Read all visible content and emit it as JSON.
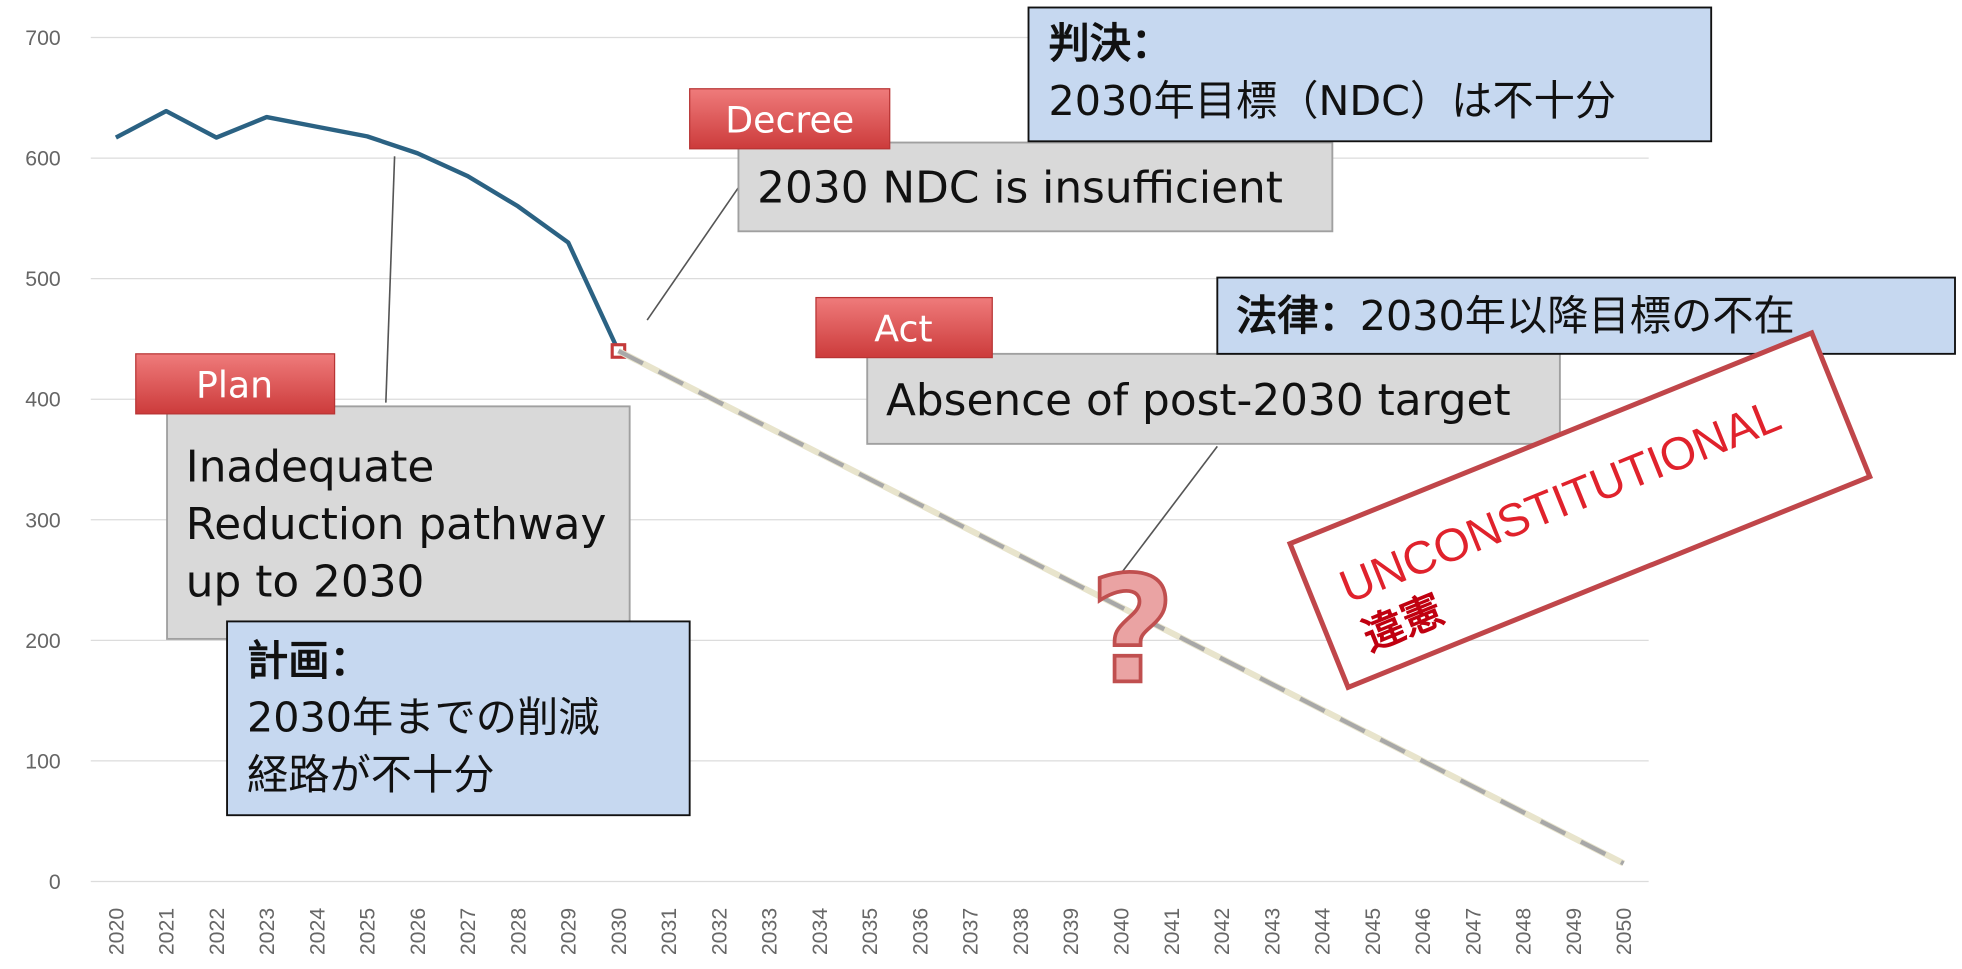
{
  "chart_data": {
    "type": "line",
    "xlim": [
      2019.5,
      2050.5
    ],
    "xticks": [
      2020,
      2021,
      2022,
      2023,
      2024,
      2025,
      2026,
      2027,
      2028,
      2029,
      2030,
      2031,
      2032,
      2033,
      2034,
      2035,
      2036,
      2037,
      2038,
      2039,
      2040,
      2041,
      2042,
      2043,
      2044,
      2045,
      2046,
      2047,
      2048,
      2049,
      2050
    ],
    "ylim": [
      0,
      700
    ],
    "yticks": [
      0,
      100,
      200,
      300,
      400,
      500,
      600,
      700
    ],
    "grid": true,
    "series": [
      {
        "color": "#2b6283",
        "x": [
          2020,
          2021,
          2022,
          2023,
          2024,
          2025,
          2026,
          2027,
          2028,
          2029,
          2030
        ],
        "values": [
          617,
          639,
          617,
          634,
          626,
          618,
          604,
          585,
          560,
          530,
          440
        ]
      },
      {
        "color": "#a8a8a8",
        "dashed": true,
        "x": [
          2030,
          2050
        ],
        "values": [
          440,
          15
        ]
      }
    ],
    "annotations": {
      "plan": {
        "tag": "Plan",
        "en": [
          "Inadequate",
          "Reduction pathway",
          "up to 2030"
        ],
        "ja_heading": "計画：",
        "ja": [
          "2030年までの削減",
          "経路が不十分"
        ]
      },
      "decree": {
        "tag": "Decree",
        "en": [
          "2030 NDC is insufficient"
        ],
        "ja_heading": "判決：",
        "ja": [
          "2030年目標（NDC）は不十分"
        ]
      },
      "act": {
        "tag": "Act",
        "en": [
          "Absence of post-2030 target"
        ],
        "ja_heading": "法律：",
        "ja": [
          "2030年以降目標の不在"
        ]
      },
      "stamp": [
        "UNCONSTITUTIONAL",
        "違憲"
      ],
      "mark": "?"
    }
  }
}
